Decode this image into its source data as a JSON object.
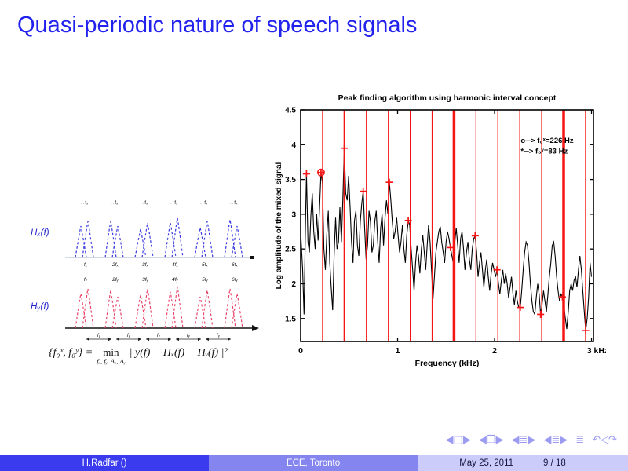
{
  "slide": {
    "title": "Quasi-periodic nature of speech signals"
  },
  "diagram": {
    "label_top": "Hₓ(f)",
    "label_bottom": "Hᵧ(f)",
    "top_arrow_labels": [
      "↔fₓ",
      "↔fₓ",
      "↔fₓ",
      "↔fₓ",
      "↔fₓ",
      "↔fₓ"
    ],
    "top_axis_labels": [
      "fₓ",
      "2fₓ",
      "3fₓ",
      "4fₓ",
      "5fₓ",
      "6fₓ"
    ],
    "bottom_upper_labels": [
      "fᵧ",
      "2fᵧ",
      "3fᵧ",
      "4fᵧ",
      "5fᵧ",
      "6fᵧ"
    ],
    "chain_label": "fᵧ",
    "colors": {
      "top": "#3a3ae0",
      "bottom": "#e8456a",
      "label": "#2222cc"
    }
  },
  "formula": {
    "left": "{f₀ˣ, f₀ʸ} =",
    "min_word": "min",
    "min_sub": "fₓ, fᵧ, Aₓ, Aᵧ",
    "right": "| y(f) − Hₓ(f) − Hᵧ(f) |²"
  },
  "chart_data": {
    "type": "line",
    "title": "Peak finding algorithm using harmonic interval concept",
    "xlabel": "Frequency (kHz)",
    "ylabel": "Log amplitude of the mixed signal",
    "xlim": [
      0,
      3.02
    ],
    "ylim": [
      1.17,
      4.5
    ],
    "xticks": [
      0,
      1,
      2,
      3
    ],
    "xtick_labels": [
      "0",
      "1",
      "2",
      "3 kHz"
    ],
    "yticks": [
      1.5,
      2,
      2.5,
      3,
      3.5,
      4,
      4.5
    ],
    "legend": [
      {
        "marker": "o",
        "label": "o─> f₀ˣ=226 Hz"
      },
      {
        "marker": "*",
        "label": "*─> f₀ʸ=83  Hz"
      }
    ],
    "colors": {
      "signal": "#000000",
      "harmonic": "#f51515",
      "marker": "#f51515"
    },
    "vlines": {
      "freqs": [
        0.226,
        0.452,
        0.678,
        0.904,
        1.13,
        1.356,
        1.582,
        1.808,
        2.034,
        2.26,
        2.486,
        2.712,
        2.938
      ],
      "widths": [
        1.2,
        2.2,
        1.2,
        1.2,
        1.2,
        1.2,
        3.5,
        1.2,
        1.2,
        1.2,
        1.2,
        3.5,
        1.2
      ]
    },
    "signal": [
      0.0,
      2.75,
      0.02,
      2.2,
      0.035,
      1.56,
      0.05,
      2.9,
      0.06,
      3.58,
      0.075,
      2.6,
      0.09,
      2.45,
      0.105,
      2.98,
      0.12,
      3.3,
      0.135,
      2.75,
      0.15,
      2.5,
      0.165,
      3.0,
      0.18,
      2.62,
      0.195,
      3.1,
      0.21,
      3.6,
      0.225,
      3.45,
      0.24,
      2.5,
      0.255,
      2.2,
      0.27,
      2.7,
      0.285,
      3.05,
      0.3,
      2.3,
      0.315,
      1.95,
      0.33,
      1.62,
      0.345,
      2.4,
      0.36,
      2.95,
      0.375,
      2.5,
      0.39,
      2.6,
      0.405,
      3.1,
      0.42,
      2.6,
      0.435,
      3.2,
      0.45,
      3.95,
      0.465,
      3.3,
      0.48,
      3.2,
      0.495,
      3.55,
      0.51,
      3.1,
      0.525,
      2.6,
      0.54,
      2.3,
      0.555,
      2.9,
      0.57,
      3.05,
      0.585,
      2.55,
      0.6,
      2.4,
      0.615,
      2.9,
      0.63,
      3.15,
      0.645,
      3.33,
      0.66,
      2.8,
      0.675,
      2.35,
      0.69,
      2.55,
      0.705,
      3.05,
      0.72,
      2.9,
      0.735,
      2.45,
      0.75,
      2.55,
      0.765,
      2.9,
      0.78,
      3.05,
      0.795,
      2.6,
      0.81,
      2.3,
      0.825,
      2.8,
      0.84,
      3.0,
      0.855,
      2.55,
      0.87,
      2.95,
      0.885,
      3.2,
      0.9,
      3.0,
      0.915,
      3.46,
      0.93,
      3.2,
      0.945,
      2.9,
      0.96,
      2.65,
      0.975,
      2.75,
      0.99,
      2.95,
      1.005,
      2.7,
      1.02,
      2.45,
      1.035,
      2.6,
      1.05,
      2.85,
      1.065,
      2.5,
      1.08,
      2.3,
      1.095,
      2.7,
      1.11,
      2.91,
      1.125,
      2.85,
      1.14,
      2.5,
      1.155,
      2.2,
      1.17,
      1.9,
      1.185,
      2.3,
      1.2,
      2.55,
      1.215,
      2.4,
      1.23,
      2.15,
      1.245,
      2.5,
      1.26,
      2.7,
      1.275,
      2.45,
      1.29,
      2.2,
      1.305,
      2.55,
      1.32,
      2.85,
      1.335,
      2.6,
      1.35,
      2.2,
      1.365,
      1.78,
      1.38,
      2.1,
      1.395,
      2.45,
      1.41,
      2.6,
      1.425,
      2.75,
      1.44,
      2.82,
      1.455,
      2.6,
      1.47,
      2.45,
      1.485,
      2.3,
      1.5,
      2.6,
      1.515,
      2.75,
      1.53,
      2.65,
      1.545,
      2.52,
      1.56,
      2.4,
      1.575,
      2.3,
      1.59,
      2.6,
      1.605,
      2.8,
      1.62,
      2.55,
      1.635,
      2.3,
      1.65,
      2.65,
      1.665,
      2.75,
      1.68,
      2.5,
      1.695,
      2.2,
      1.71,
      2.45,
      1.725,
      2.6,
      1.74,
      2.35,
      1.755,
      2.2,
      1.77,
      2.5,
      1.785,
      2.65,
      1.8,
      2.69,
      1.815,
      2.45,
      1.83,
      2.1,
      1.845,
      2.3,
      1.86,
      2.45,
      1.875,
      2.2,
      1.89,
      1.95,
      1.905,
      2.2,
      1.92,
      2.35,
      1.935,
      2.1,
      1.95,
      1.9,
      1.965,
      2.15,
      1.98,
      2.3,
      1.995,
      2.2,
      2.01,
      2.1,
      2.025,
      2.2,
      2.04,
      2.0,
      2.055,
      1.85,
      2.07,
      2.05,
      2.085,
      2.2,
      2.1,
      2.0,
      2.115,
      2.15,
      2.13,
      2.0,
      2.145,
      1.8,
      2.16,
      1.95,
      2.175,
      2.1,
      2.19,
      1.85,
      2.205,
      1.7,
      2.22,
      1.9,
      2.235,
      1.75,
      2.25,
      1.66,
      2.265,
      1.66,
      2.28,
      1.9,
      2.295,
      2.2,
      2.31,
      2.45,
      2.325,
      2.6,
      2.34,
      2.55,
      2.355,
      2.3,
      2.37,
      2.0,
      2.385,
      1.75,
      2.4,
      1.6,
      2.415,
      1.56,
      2.43,
      1.8,
      2.445,
      2.0,
      2.46,
      1.85,
      2.475,
      1.56,
      2.49,
      1.7,
      2.505,
      1.9,
      2.52,
      1.75,
      2.535,
      1.6,
      2.55,
      1.85,
      2.565,
      2.1,
      2.58,
      2.3,
      2.595,
      2.55,
      2.61,
      2.6,
      2.625,
      2.4,
      2.64,
      2.1,
      2.655,
      1.9,
      2.67,
      1.75,
      2.685,
      1.85,
      2.7,
      1.81,
      2.715,
      1.7,
      2.73,
      1.5,
      2.745,
      1.35,
      2.76,
      1.6,
      2.775,
      1.9,
      2.79,
      2.0,
      2.805,
      1.9,
      2.82,
      2.05,
      2.835,
      2.1,
      2.85,
      1.95,
      2.865,
      2.2,
      2.88,
      2.4,
      2.895,
      2.2,
      2.91,
      1.9,
      2.925,
      1.6,
      2.94,
      1.33,
      2.955,
      1.5,
      2.97,
      1.8,
      2.985,
      2.3,
      3.0,
      2.1
    ],
    "peak_markers": [
      0.06,
      3.58,
      0.21,
      3.6,
      0.45,
      3.95,
      0.645,
      3.33,
      0.915,
      3.46,
      1.11,
      2.91,
      1.545,
      2.52,
      1.8,
      2.69,
      2.025,
      2.2,
      2.265,
      1.66,
      2.475,
      1.56,
      2.7,
      1.81,
      2.94,
      1.33
    ],
    "circle_markers": [
      0.21,
      3.6
    ]
  },
  "nav": {
    "icons": [
      {
        "name": "slide-prev",
        "glyph": "◀"
      },
      {
        "name": "slide-box",
        "glyph": "▢"
      },
      {
        "name": "slide-next",
        "glyph": "▶"
      },
      {
        "name": "frame-prev",
        "glyph": "◀",
        "gap": true
      },
      {
        "name": "frame-box",
        "glyph": "❐"
      },
      {
        "name": "frame-next",
        "glyph": "▶"
      },
      {
        "name": "subsection-prev",
        "glyph": "◀",
        "gap": true
      },
      {
        "name": "subsection-list",
        "glyph": "≣"
      },
      {
        "name": "subsection-next",
        "glyph": "▶"
      },
      {
        "name": "section-prev",
        "glyph": "◀",
        "gap": true
      },
      {
        "name": "section-list",
        "glyph": "≣"
      },
      {
        "name": "section-next",
        "glyph": "▶"
      },
      {
        "name": "appendix",
        "glyph": "≣",
        "gap": true
      },
      {
        "name": "back",
        "glyph": "↶",
        "gap": true
      },
      {
        "name": "history",
        "glyph": "◁"
      },
      {
        "name": "forward",
        "glyph": "↷"
      }
    ]
  },
  "footer": {
    "author": "H.Radfar ()",
    "institute": "ECE, Toronto",
    "date": "May 25, 2011",
    "page": "9 / 18"
  }
}
